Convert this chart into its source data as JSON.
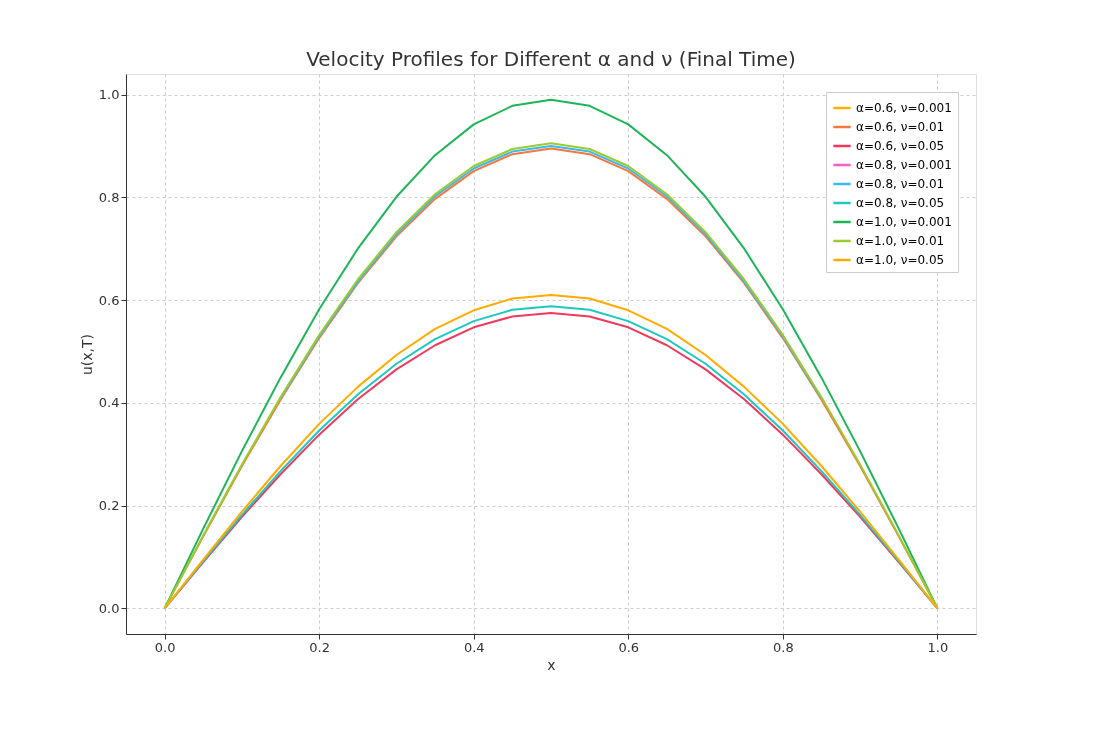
{
  "chart_data": {
    "type": "line",
    "title": "Velocity Profiles for Different α and ν (Final Time)",
    "xlabel": "x",
    "ylabel": "u(x,T)",
    "x": [
      0,
      0.05,
      0.1,
      0.15,
      0.2,
      0.25,
      0.3,
      0.35,
      0.4,
      0.45,
      0.5,
      0.55,
      0.6,
      0.65,
      0.7,
      0.75,
      0.8,
      0.85,
      0.9,
      0.95,
      1.0
    ],
    "series": [
      {
        "name": "α=0.6, ν=0.001",
        "color": "#ffb000",
        "values": [
          null,
          null,
          null,
          null,
          null,
          null,
          null,
          null,
          null,
          null,
          null,
          null,
          null,
          null,
          null,
          null,
          null,
          null,
          null,
          null,
          null
        ]
      },
      {
        "name": "α=0.6, ν=0.01",
        "color": "#f8773a",
        "values": [
          0,
          0.14,
          0.277,
          0.406,
          0.526,
          0.633,
          0.724,
          0.797,
          0.851,
          0.884,
          0.895,
          0.884,
          0.851,
          0.797,
          0.724,
          0.633,
          0.526,
          0.406,
          0.277,
          0.14,
          0
        ]
      },
      {
        "name": "α=0.6, ν=0.05",
        "color": "#ef3a5d",
        "values": [
          0,
          0.09,
          0.178,
          0.261,
          0.338,
          0.407,
          0.465,
          0.512,
          0.547,
          0.568,
          0.575,
          0.568,
          0.547,
          0.512,
          0.465,
          0.407,
          0.338,
          0.261,
          0.178,
          0.09,
          0
        ]
      },
      {
        "name": "α=0.8, ν=0.001",
        "color": "#ff5ec4",
        "values": [
          null,
          null,
          null,
          null,
          null,
          null,
          null,
          null,
          null,
          null,
          null,
          null,
          null,
          null,
          null,
          null,
          null,
          null,
          null,
          null,
          null
        ]
      },
      {
        "name": "α=0.8, ν=0.01",
        "color": "#3cb8f2",
        "values": [
          null,
          null,
          null,
          0.409,
          0.529,
          0.636,
          0.728,
          0.802,
          0.856,
          0.889,
          0.9,
          0.889,
          0.856,
          0.802,
          0.728,
          0.636,
          0.529,
          0.409,
          null,
          null,
          null
        ]
      },
      {
        "name": "α=0.8, ν=0.05",
        "color": "#1ec8c2",
        "values": [
          0,
          0.092,
          0.182,
          0.267,
          0.346,
          0.416,
          0.476,
          0.524,
          0.559,
          0.581,
          0.588,
          0.581,
          0.559,
          0.524,
          0.476,
          0.416,
          0.346,
          0.267,
          0.182,
          0.092,
          0
        ]
      },
      {
        "name": "α=1.0, ν=0.001",
        "color": "#1db558",
        "values": [
          0,
          0.155,
          0.306,
          0.449,
          0.582,
          0.7,
          0.801,
          0.882,
          0.942,
          0.978,
          0.99,
          0.978,
          0.942,
          0.882,
          0.801,
          0.7,
          0.582,
          0.449,
          0.306,
          0.155,
          0
        ]
      },
      {
        "name": "α=1.0, ν=0.01",
        "color": "#9acb2f",
        "values": [
          0,
          0.142,
          0.28,
          0.411,
          0.532,
          0.64,
          0.732,
          0.806,
          0.861,
          0.894,
          0.905,
          0.894,
          0.861,
          0.806,
          0.732,
          0.64,
          0.532,
          0.411,
          0.28,
          0.142,
          0
        ]
      },
      {
        "name": "α=1.0, ν=0.05",
        "color": "#ffab00",
        "values": [
          0,
          0.095,
          0.188,
          0.277,
          0.359,
          0.431,
          0.493,
          0.544,
          0.58,
          0.603,
          0.61,
          0.603,
          0.58,
          0.544,
          0.493,
          0.431,
          0.359,
          0.277,
          0.188,
          0.095,
          0
        ]
      }
    ],
    "xlim": [
      -0.05,
      1.05
    ],
    "ylim": [
      -0.05,
      1.04
    ],
    "xticks": [
      {
        "value": 0,
        "label": "0.0"
      },
      0.2,
      0.4,
      0.6,
      0.8,
      {
        "value": 1,
        "label": "1.0"
      }
    ],
    "yticks": [
      {
        "value": 0,
        "label": "0.0"
      },
      0.2,
      0.4,
      0.6,
      0.8,
      {
        "value": 1,
        "label": "1.0"
      }
    ],
    "grid": true,
    "legend": "top right",
    "line_style": "solid",
    "marker": "none"
  }
}
